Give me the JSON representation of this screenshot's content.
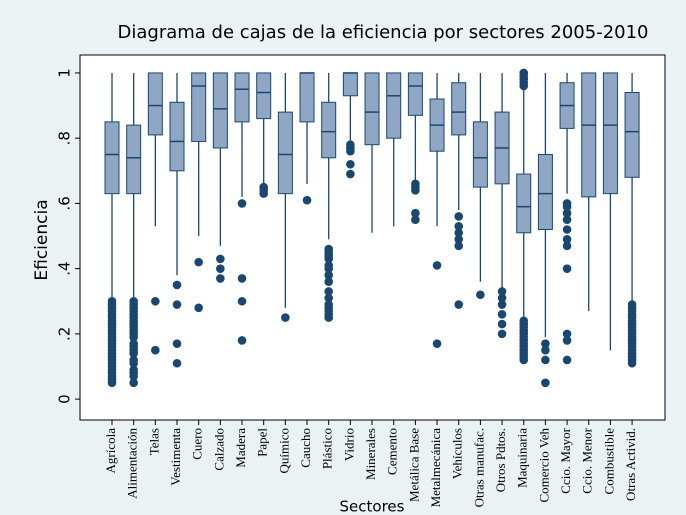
{
  "chart_data": {
    "type": "box",
    "title": "Diagrama de cajas de la eficiencia por sectores 2005-2010",
    "x_label": "Sectores",
    "y_label": "Eficiencia",
    "categories": [
      "Agrícola",
      "Alimentación",
      "Telas",
      "Vestimenta",
      "Cuero",
      "Calzado",
      "Madera",
      "Papel",
      "Químico",
      "Caucho",
      "Plástico",
      "Vidrio",
      "Minerales",
      "Cemento",
      "Metálica Base",
      "Metalmecánica",
      "Vehículos",
      "Otras manufac.",
      "Otros Pdtos.",
      "Maquinaria",
      "Comercio Veh",
      "Ccio. Mayor",
      "Ccio. Menor",
      "Combustible",
      "Otras Activid."
    ],
    "whisker_low": [
      0.31,
      0.31,
      0.53,
      0.38,
      0.5,
      0.47,
      0.62,
      0.66,
      0.28,
      0.66,
      0.49,
      0.79,
      0.51,
      0.53,
      0.67,
      0.53,
      0.58,
      0.36,
      0.34,
      0.25,
      0.19,
      0.63,
      0.27,
      0.15,
      0.3
    ],
    "q1": [
      0.63,
      0.63,
      0.81,
      0.7,
      0.79,
      0.77,
      0.85,
      0.86,
      0.63,
      0.85,
      0.74,
      0.93,
      0.78,
      0.8,
      0.87,
      0.76,
      0.81,
      0.65,
      0.66,
      0.51,
      0.52,
      0.83,
      0.62,
      0.63,
      0.68
    ],
    "median": [
      0.75,
      0.74,
      0.9,
      0.79,
      0.96,
      0.89,
      0.95,
      0.94,
      0.75,
      1,
      0.82,
      1,
      0.88,
      0.93,
      0.96,
      0.84,
      0.88,
      0.74,
      0.77,
      0.59,
      0.63,
      0.9,
      0.84,
      0.84,
      0.82
    ],
    "q3": [
      0.85,
      0.84,
      1,
      0.91,
      1,
      1,
      1,
      1,
      0.88,
      1,
      0.91,
      1,
      1,
      1,
      1,
      0.92,
      0.97,
      0.85,
      0.88,
      0.69,
      0.75,
      0.97,
      1,
      1,
      0.94
    ],
    "whisker_high": [
      1,
      1,
      1,
      1,
      1,
      1,
      1,
      1,
      1,
      1,
      1,
      1,
      1,
      1,
      1,
      1,
      1,
      1,
      1,
      0.95,
      1,
      1,
      1,
      1,
      1
    ],
    "outliers": [
      [
        0.3,
        0.29,
        0.28,
        0.27,
        0.26,
        0.25,
        0.24,
        0.23,
        0.22,
        0.21,
        0.2,
        0.19,
        0.18,
        0.17,
        0.16,
        0.15,
        0.14,
        0.13,
        0.12,
        0.11,
        0.1,
        0.09,
        0.08,
        0.07,
        0.06,
        0.05
      ],
      [
        0.3,
        0.29,
        0.28,
        0.27,
        0.26,
        0.25,
        0.24,
        0.23,
        0.22,
        0.21,
        0.2,
        0.19,
        0.17,
        0.16,
        0.15,
        0.14,
        0.12,
        0.11,
        0.09,
        0.08,
        0.07,
        0.05
      ],
      [
        0.3,
        0.15
      ],
      [
        0.35,
        0.29,
        0.17,
        0.11
      ],
      [
        0.42,
        0.28
      ],
      [
        0.43,
        0.4,
        0.37
      ],
      [
        0.6,
        0.37,
        0.3,
        0.18
      ],
      [
        0.65,
        0.64,
        0.63
      ],
      [
        0.25
      ],
      [
        0.61
      ],
      [
        0.46,
        0.45,
        0.44,
        0.43,
        0.41,
        0.4,
        0.38,
        0.36,
        0.33,
        0.31,
        0.29,
        0.28,
        0.27,
        0.26,
        0.25
      ],
      [
        0.78,
        0.77,
        0.76,
        0.72,
        0.69
      ],
      [],
      [],
      [
        0.66,
        0.65,
        0.64,
        0.57,
        0.55
      ],
      [
        0.41,
        0.17
      ],
      [
        0.56,
        0.53,
        0.51,
        0.49,
        0.47,
        0.29
      ],
      [
        0.32
      ],
      [
        0.33,
        0.31,
        0.29,
        0.26,
        0.23,
        0.2
      ],
      [
        1,
        0.99,
        0.98,
        0.97,
        0.96,
        0.24,
        0.23,
        0.22,
        0.21,
        0.2,
        0.19,
        0.18,
        0.17,
        0.16,
        0.15,
        0.14,
        0.13,
        0.12
      ],
      [
        0.17,
        0.15,
        0.12,
        0.05
      ],
      [
        0.6,
        0.59,
        0.57,
        0.55,
        0.52,
        0.49,
        0.47,
        0.4,
        0.2,
        0.18,
        0.12
      ],
      [],
      [],
      [
        0.29,
        0.28,
        0.27,
        0.26,
        0.25,
        0.24,
        0.23,
        0.22,
        0.21,
        0.2,
        0.19,
        0.18,
        0.17,
        0.16,
        0.15,
        0.14,
        0.13,
        0.12,
        0.11
      ]
    ],
    "ylim": [
      -0.064,
      1.055
    ],
    "yticks": [
      0,
      {
        "value": 0.2,
        "label": ".2"
      },
      {
        "value": 0.4,
        "label": ".4"
      },
      {
        "value": 0.6,
        "label": ".6"
      },
      {
        "value": 0.8,
        "label": ".8"
      },
      1
    ],
    "box_color": "#8fa7c4",
    "line_color": "#1a476f",
    "outlier_color": "#1a476f"
  }
}
